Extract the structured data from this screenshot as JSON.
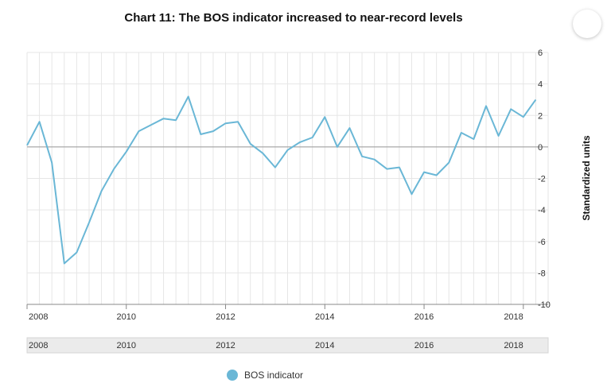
{
  "chart_data": {
    "type": "line",
    "title": "Chart 11: The BOS indicator increased to near-record levels",
    "xlabel": "",
    "ylabel": "Standardized units",
    "xlim": [
      2008.0,
      2018.5
    ],
    "ylim": [
      -10,
      6
    ],
    "y_ticks": [
      6,
      4,
      2,
      0,
      -2,
      -4,
      -6,
      -8,
      -10
    ],
    "x_ticks": [
      "2008",
      "2010",
      "2012",
      "2014",
      "2016",
      "2018"
    ],
    "navigator_ticks": [
      "2008",
      "2010",
      "2012",
      "2014",
      "2016",
      "2018"
    ],
    "grid": true,
    "legend": "bottom-center",
    "colors": {
      "line": "#6ab7d6",
      "axis": "#999999",
      "grid": "#e6e6e6"
    },
    "series": [
      {
        "name": "BOS indicator",
        "x": [
          2008.0,
          2008.25,
          2008.5,
          2008.75,
          2009.0,
          2009.25,
          2009.5,
          2009.75,
          2010.0,
          2010.25,
          2010.5,
          2010.75,
          2011.0,
          2011.25,
          2011.5,
          2011.75,
          2012.0,
          2012.25,
          2012.5,
          2012.75,
          2013.0,
          2013.25,
          2013.5,
          2013.75,
          2014.0,
          2014.25,
          2014.5,
          2014.75,
          2015.0,
          2015.25,
          2015.5,
          2015.75,
          2016.0,
          2016.25,
          2016.5,
          2016.75,
          2017.0,
          2017.25,
          2017.5,
          2017.75,
          2018.0,
          2018.25
        ],
        "values": [
          0.1,
          1.6,
          -1.0,
          -7.4,
          -6.7,
          -4.8,
          -2.8,
          -1.4,
          -0.3,
          1.0,
          1.4,
          1.8,
          1.7,
          3.2,
          0.8,
          1.0,
          1.5,
          1.6,
          0.2,
          -0.4,
          -1.3,
          -0.2,
          0.3,
          0.6,
          1.9,
          0.0,
          1.2,
          -0.6,
          -0.8,
          -1.4,
          -1.3,
          -3.0,
          -1.6,
          -1.8,
          -1.0,
          0.9,
          0.5,
          2.6,
          0.7,
          2.4,
          1.9,
          3.0
        ]
      }
    ]
  }
}
